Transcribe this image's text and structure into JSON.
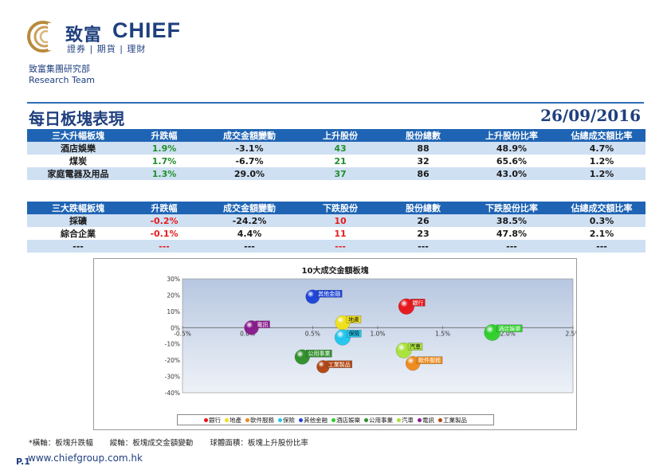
{
  "logo": {
    "cn": "致富",
    "en": "CHIEF",
    "sub": "證券 | 期貨 | 理財"
  },
  "dept": {
    "cn": "致富集團研究部",
    "en": "Research Team"
  },
  "page": {
    "title": "每日板塊表現",
    "date": "26/09/2016",
    "page_no": "P.1",
    "url": "www.chiefgroup.com.hk"
  },
  "gainers": {
    "headers": [
      "三大升幅板塊",
      "升跌幅",
      "成交金額變動",
      "上升股份",
      "股份總數",
      "上升股份比率",
      "佔總成交額比率"
    ],
    "rows": [
      [
        "酒店娛樂",
        "1.9%",
        "-3.1%",
        "43",
        "88",
        "48.9%",
        "4.7%"
      ],
      [
        "煤炭",
        "1.7%",
        "-6.7%",
        "21",
        "32",
        "65.6%",
        "1.2%"
      ],
      [
        "家庭電器及用品",
        "1.3%",
        "29.0%",
        "37",
        "86",
        "43.0%",
        "1.2%"
      ]
    ]
  },
  "losers": {
    "headers": [
      "三大跌幅板塊",
      "升跌幅",
      "成交金額變動",
      "下跌股份",
      "股份總數",
      "下跌股份比率",
      "佔總成交額比率"
    ],
    "rows": [
      [
        "採礦",
        "-0.2%",
        "-24.2%",
        "10",
        "26",
        "38.5%",
        "0.3%"
      ],
      [
        "綜合企業",
        "-0.1%",
        "4.4%",
        "11",
        "23",
        "47.8%",
        "2.1%"
      ],
      [
        "---",
        "---",
        "---",
        "---",
        "---",
        "---",
        "---"
      ]
    ]
  },
  "chart_data": {
    "type": "scatter",
    "title": "10大成交金額板塊",
    "xlabel": "",
    "ylabel": "",
    "xlim": [
      -0.005,
      0.025
    ],
    "ylim": [
      -0.4,
      0.3
    ],
    "x_ticks": [
      "-0.5%",
      "0.0%",
      "0.5%",
      "1.0%",
      "1.5%",
      "2.0%",
      "2.5%"
    ],
    "y_ticks": [
      "30%",
      "20%",
      "10%",
      "0%",
      "-10%",
      "-20%",
      "-30%",
      "-40%"
    ],
    "legend_position": "bottom",
    "series": [
      {
        "name": "銀行",
        "x": 0.0122,
        "y": 0.13,
        "size": 0.46,
        "color": "#e8151b"
      },
      {
        "name": "地產",
        "x": 0.0073,
        "y": 0.03,
        "size": 0.4,
        "color": "#f0e11b"
      },
      {
        "name": "軟件服務",
        "x": 0.0127,
        "y": -0.22,
        "size": 0.38,
        "color": "#ef8a1b"
      },
      {
        "name": "保險",
        "x": 0.0073,
        "y": -0.06,
        "size": 0.46,
        "color": "#21c6ee"
      },
      {
        "name": "其他金融",
        "x": 0.005,
        "y": 0.19,
        "size": 0.36,
        "color": "#1c43d8"
      },
      {
        "name": "酒店娛樂",
        "x": 0.0188,
        "y": -0.03,
        "size": 0.49,
        "color": "#2fcf2b"
      },
      {
        "name": "公用事業",
        "x": 0.0042,
        "y": -0.18,
        "size": 0.41,
        "color": "#2f8f2a"
      },
      {
        "name": "汽車",
        "x": 0.012,
        "y": -0.14,
        "size": 0.45,
        "color": "#a9e23b"
      },
      {
        "name": "電訊",
        "x": 0.0003,
        "y": 0.0,
        "size": 0.38,
        "color": "#8a1a8c"
      },
      {
        "name": "工業製品",
        "x": 0.0058,
        "y": -0.24,
        "size": 0.3,
        "color": "#b24613"
      }
    ]
  },
  "footnote": {
    "x": "*橫軸：板塊升跌幅",
    "y": "縱軸：板塊成交金額變動",
    "size": "球體面積：板塊上升股份比率"
  }
}
